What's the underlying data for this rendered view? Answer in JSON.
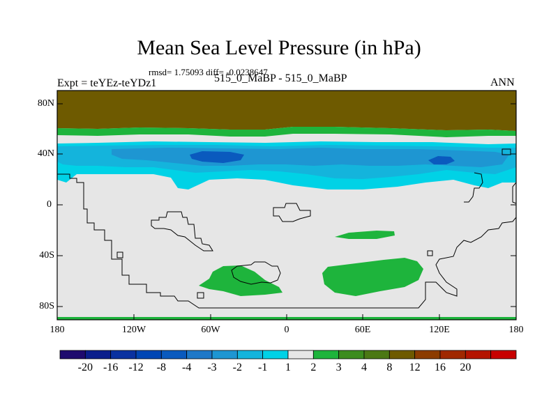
{
  "title": "Mean Sea Level Pressure (in hPa)",
  "stats": "rmsd= 1.75093 diff= -0.0238647",
  "subtitle": "515_0_MaBP - 515_0_MaBP",
  "left_label": "Expt = teYEz-teYDz1",
  "right_label": "ANN",
  "axes": {
    "y_ticks": [
      "80N",
      "40N",
      "0",
      "40S",
      "80S"
    ],
    "x_ticks": [
      "180",
      "120W",
      "60W",
      "0",
      "60E",
      "120E",
      "180"
    ]
  },
  "colorbar": {
    "labels": [
      "-20",
      "-16",
      "-12",
      "-8",
      "-4",
      "-3",
      "-2",
      "-1",
      "1",
      "2",
      "3",
      "4",
      "8",
      "12",
      "16",
      "20"
    ],
    "colors": [
      "#1e0a6e",
      "#0a1e8c",
      "#0a32a0",
      "#0046b4",
      "#0a5abe",
      "#1e78c8",
      "#1e96d2",
      "#14b4dc",
      "#00d2e6",
      "#e6e6e6",
      "#1eb43c",
      "#3c8c1e",
      "#4b7814",
      "#6e5a00",
      "#8c3c00",
      "#a02800",
      "#b41400",
      "#c80000"
    ]
  },
  "legend_colors": {
    "background": "#e6e6e6",
    "pole_high": "#6e5a00",
    "green": "#1eb43c",
    "cyan": "#00d2e6",
    "blue_light": "#14b4dc",
    "blue_mid": "#1e96d2",
    "blue_dark": "#0a5abe"
  }
}
